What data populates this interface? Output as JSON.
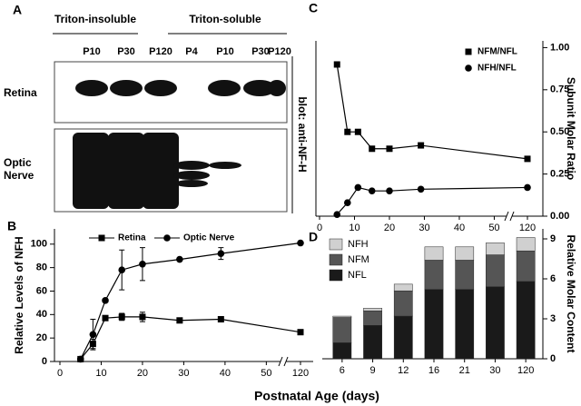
{
  "panel_a": {
    "label": "A",
    "groups": [
      {
        "title": "Triton-insoluble",
        "lanes": [
          "P10",
          "P30",
          "P120"
        ]
      },
      {
        "title": "Triton-soluble",
        "lanes": [
          "P4",
          "P10",
          "P30",
          "P120"
        ]
      }
    ],
    "rows": [
      "Retina",
      "Optic Nerve"
    ],
    "side_label": "blot: anti-NF-H"
  },
  "x_label": "Postnatal Age (days)",
  "chart_data": [
    {
      "type": "line",
      "panel": "B",
      "ylabel": "Relative Levels of NFH",
      "legend": "top",
      "xlim": [
        0,
        123
      ],
      "xbreak": [
        53,
        117
      ],
      "xticks": [
        0,
        10,
        20,
        30,
        40,
        50,
        120
      ],
      "ylim": [
        0,
        113
      ],
      "yticks": [
        0,
        20,
        40,
        60,
        80,
        100
      ],
      "series": [
        {
          "name": "Retina",
          "color": "#000000",
          "marker": "square",
          "x": [
            5,
            8,
            11,
            15,
            20,
            29,
            39,
            120
          ],
          "values": [
            2,
            15,
            37,
            38,
            38,
            35,
            36,
            25
          ],
          "errors": [
            0,
            4,
            0,
            3,
            4,
            0,
            0,
            0
          ]
        },
        {
          "name": "Optic Nerve",
          "color": "#000000",
          "marker": "circle",
          "x": [
            5,
            8,
            11,
            15,
            20,
            29,
            39,
            120
          ],
          "values": [
            2,
            23,
            52,
            78,
            83,
            87,
            92,
            101
          ],
          "errors": [
            0,
            13,
            0,
            17,
            14,
            0,
            5,
            0
          ]
        }
      ]
    },
    {
      "type": "line",
      "panel": "C",
      "ylabel": "Subunit Molar Ratio",
      "legend": "top-right",
      "xlim": [
        0,
        123
      ],
      "xbreak": [
        53,
        117
      ],
      "xticks": [
        0,
        10,
        20,
        30,
        40,
        50,
        120
      ],
      "ylim": [
        0,
        1.04
      ],
      "yticks": [
        {
          "value": 0,
          "label": "0.00"
        },
        {
          "value": 0.25,
          "label": "0.25"
        },
        {
          "value": 0.5,
          "label": "0.50"
        },
        {
          "value": 0.75,
          "label": "0.75"
        },
        {
          "value": 1,
          "label": "1.00"
        }
      ],
      "series": [
        {
          "name": "NFM/NFL",
          "color": "#000000",
          "marker": "square",
          "x": [
            5,
            8,
            11,
            15,
            20,
            29,
            120
          ],
          "values": [
            0.9,
            0.5,
            0.5,
            0.4,
            0.4,
            0.42,
            0.34
          ]
        },
        {
          "name": "NFH/NFL",
          "color": "#000000",
          "marker": "circle",
          "x": [
            5,
            8,
            11,
            15,
            20,
            29,
            120
          ],
          "values": [
            0.01,
            0.08,
            0.17,
            0.15,
            0.15,
            0.16,
            0.17
          ]
        }
      ]
    },
    {
      "type": "stacked_bar",
      "panel": "D",
      "ylabel": "Relative Molar Content",
      "legend": "top-left",
      "categories": [
        "6",
        "9",
        "12",
        "16",
        "21",
        "30",
        "120"
      ],
      "ylim": [
        0,
        9.75
      ],
      "yticks": [
        0,
        3,
        6,
        9
      ],
      "series": [
        {
          "name": "NFL",
          "color": "#1a1a1a",
          "values": [
            1.2,
            2.5,
            3.2,
            5.2,
            5.2,
            5.4,
            5.8
          ]
        },
        {
          "name": "NFM",
          "color": "#555555",
          "values": [
            1.9,
            1.1,
            1.9,
            2.2,
            2.2,
            2.4,
            2.3
          ]
        },
        {
          "name": "NFH",
          "color": "#d0d0d0",
          "values": [
            0.1,
            0.2,
            0.5,
            1.0,
            1.0,
            0.9,
            1.0
          ]
        }
      ]
    }
  ]
}
